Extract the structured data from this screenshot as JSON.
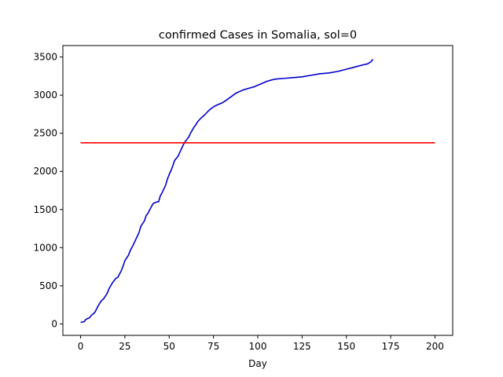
{
  "chart_data": {
    "type": "line",
    "title": "confirmed Cases in Somalia, sol=0",
    "xlabel": "Day",
    "ylabel": "",
    "xlim": [
      -10,
      210
    ],
    "ylim": [
      -150,
      3650
    ],
    "xticks": [
      0,
      25,
      50,
      75,
      100,
      125,
      150,
      175,
      200
    ],
    "yticks": [
      0,
      500,
      1000,
      1500,
      2000,
      2500,
      3000,
      3500
    ],
    "grid": false,
    "legend": "none",
    "series": [
      {
        "color": "#0000cd",
        "x": [
          0,
          2,
          3,
          5,
          6,
          8,
          10,
          11,
          12,
          13,
          15,
          16,
          18,
          20,
          21,
          23,
          24,
          25,
          27,
          28,
          30,
          31,
          33,
          34,
          36,
          37,
          38,
          40,
          41,
          43,
          44,
          45,
          46,
          48,
          49,
          50,
          51,
          52,
          53,
          55,
          56,
          57,
          58,
          59,
          60,
          61,
          62,
          63,
          64,
          65,
          66,
          68,
          70,
          72,
          74,
          76,
          78,
          80,
          82,
          85,
          88,
          90,
          92,
          95,
          98,
          100,
          103,
          105,
          108,
          110,
          115,
          120,
          125,
          130,
          135,
          140,
          145,
          150,
          155,
          160,
          162,
          164,
          165
        ],
        "y": [
          20,
          30,
          60,
          80,
          110,
          150,
          240,
          280,
          310,
          330,
          400,
          460,
          540,
          600,
          610,
          700,
          760,
          830,
          900,
          960,
          1050,
          1100,
          1200,
          1280,
          1350,
          1420,
          1450,
          1540,
          1580,
          1600,
          1600,
          1680,
          1720,
          1820,
          1900,
          1960,
          2010,
          2070,
          2140,
          2200,
          2250,
          2300,
          2350,
          2390,
          2420,
          2450,
          2500,
          2540,
          2580,
          2610,
          2650,
          2700,
          2740,
          2790,
          2830,
          2860,
          2880,
          2900,
          2930,
          2980,
          3030,
          3050,
          3070,
          3090,
          3110,
          3130,
          3160,
          3180,
          3200,
          3210,
          3220,
          3230,
          3240,
          3260,
          3280,
          3290,
          3310,
          3340,
          3370,
          3400,
          3410,
          3440,
          3470
        ]
      },
      {
        "color": "#ff0000",
        "x": [
          0,
          200
        ],
        "y": [
          2375,
          2375
        ]
      }
    ]
  }
}
